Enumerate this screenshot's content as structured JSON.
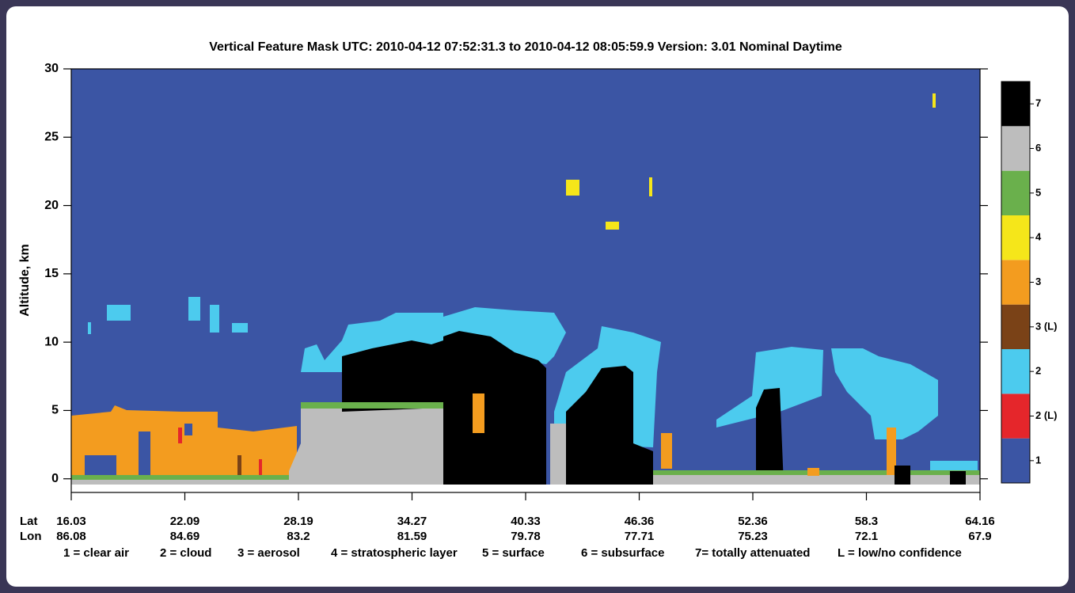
{
  "chart_data": {
    "type": "curtain",
    "title": "Vertical Feature Mask    UTC:  2010-04-12   07:52:31.3  to  2010-04-12   08:05:59.9    Version: 3.01  Nominal Daytime",
    "y_label": "Altitude, km",
    "ylim": [
      -1,
      30
    ],
    "yticks": [
      0,
      5,
      10,
      15,
      20,
      25,
      30
    ],
    "x_row_labels": [
      "Lat",
      "Lon"
    ],
    "lat": [
      16.03,
      22.09,
      28.19,
      34.27,
      40.33,
      46.36,
      52.36,
      58.3,
      64.16
    ],
    "lon": [
      86.08,
      84.69,
      83.2,
      81.59,
      79.78,
      77.71,
      75.23,
      72.1,
      67.9
    ],
    "colorbar": {
      "labels": [
        "1",
        "2 (L)",
        "2",
        "3 (L)",
        "3",
        "4",
        "5",
        "6",
        "7"
      ],
      "colors": [
        "#3b55a4",
        "#e5262b",
        "#4ccbee",
        "#7a4217",
        "#f39c1f",
        "#f5e61a",
        "#6ab04c",
        "#bdbdbd",
        "#000000"
      ]
    },
    "legend": [
      "1 = clear air",
      "2 = cloud",
      "3 = aerosol",
      "4 = stratospheric layer",
      "5 = surface",
      "6 = subsurface",
      "7= totally attenuated",
      "L = low/no confidence"
    ]
  }
}
